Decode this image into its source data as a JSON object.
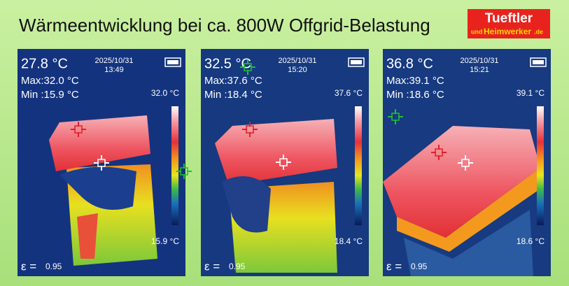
{
  "header": {
    "title": "Wärmeentwicklung bei ca. 800W Offgrid-Belastung",
    "logo": {
      "top": "Tueftler",
      "und": "und",
      "name": "Heimwerker",
      "tld": ".de"
    }
  },
  "panels": [
    {
      "temperature": "27.8 °C",
      "date": "2025/10/31",
      "time": "13:49",
      "max": "Max:32.0 °C",
      "min": "Min :15.9 °C",
      "scale_top": "32.0 °C",
      "scale_bottom": "15.9 °C",
      "emissivity_symbol": "ε =",
      "emissivity": "0.95"
    },
    {
      "temperature": "32.5 °C",
      "date": "2025/10/31",
      "time": "15:20",
      "max": "Max:37.6 °C",
      "min": "Min :18.4 °C",
      "scale_top": "37.6 °C",
      "scale_bottom": "18.4 °C",
      "emissivity_symbol": "ε =",
      "emissivity": "0.95"
    },
    {
      "temperature": "36.8 °C",
      "date": "2025/10/31",
      "time": "15:21",
      "max": "Max:39.1 °C",
      "min": "Min :18.6 °C",
      "scale_top": "39.1 °C",
      "scale_bottom": "18.6 °C",
      "emissivity_symbol": "ε =",
      "emissivity": "0.95"
    }
  ]
}
